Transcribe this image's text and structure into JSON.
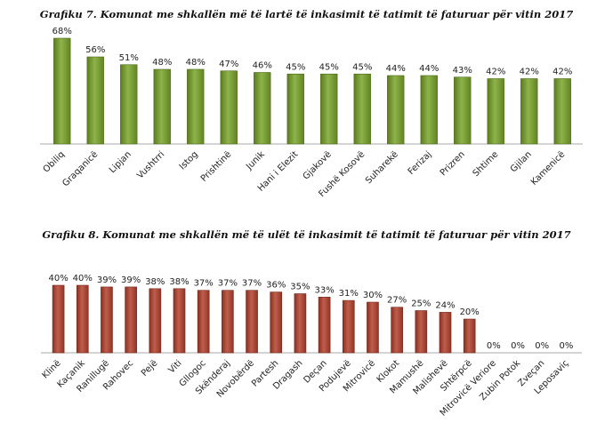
{
  "chart_data": [
    {
      "type": "bar",
      "title": "Grafiku 7. Komunat me shkallën më të lartë të inkasimit të tatimit të faturuar për vitin 2017",
      "categories": [
        "Obiliq",
        "Graqanicë",
        "Lipjan",
        "Vushtrri",
        "Istog",
        "Prishtinë",
        "Junik",
        "Hani i Elezit",
        "Gjakovë",
        "Fushë Kosovë",
        "Suharekë",
        "Ferizaj",
        "Prizren",
        "Shtime",
        "Gjilan",
        "Kamenicë"
      ],
      "values": [
        68,
        56,
        51,
        48,
        48,
        47,
        46,
        45,
        45,
        45,
        44,
        44,
        43,
        42,
        42,
        42
      ],
      "value_labels": [
        "68%",
        "56%",
        "51%",
        "48%",
        "48%",
        "47%",
        "46%",
        "45%",
        "45%",
        "45%",
        "44%",
        "44%",
        "43%",
        "42%",
        "42%",
        "42%"
      ],
      "ylim": [
        0,
        68
      ],
      "color": "#7AA52A",
      "grid": false,
      "legend": false
    },
    {
      "type": "bar",
      "title": "Grafiku 8. Komunat me shkallën më të ulët të inkasimit të tatimit të faturuar për vitin 2017",
      "categories": [
        "Klinë",
        "Kaçanik",
        "Ranillugë",
        "Rahovec",
        "Pejë",
        "Viti",
        "Gllogoc",
        "Skënderaj",
        "Novobërdë",
        "Partesh",
        "Dragash",
        "Deçan",
        "Podujevë",
        "Mitrovicë",
        "Klokot",
        "Mamushë",
        "Malishevë",
        "Shtërpcë",
        "Mitrovicë Veriore",
        "Zubin Potok",
        "Zveçan",
        "Leposaviç"
      ],
      "values": [
        40,
        40,
        39,
        39,
        38,
        38,
        37,
        37,
        37,
        36,
        35,
        33,
        31,
        30,
        27,
        25,
        24,
        20,
        0,
        0,
        0,
        0
      ],
      "value_labels": [
        "40%",
        "40%",
        "39%",
        "39%",
        "38%",
        "38%",
        "37%",
        "37%",
        "37%",
        "36%",
        "35%",
        "33%",
        "31%",
        "30%",
        "27%",
        "25%",
        "24%",
        "20%",
        "0%",
        "0%",
        "0%",
        "0%"
      ],
      "ylim": [
        0,
        40
      ],
      "color": "#B5412E",
      "grid": false,
      "legend": false
    }
  ]
}
